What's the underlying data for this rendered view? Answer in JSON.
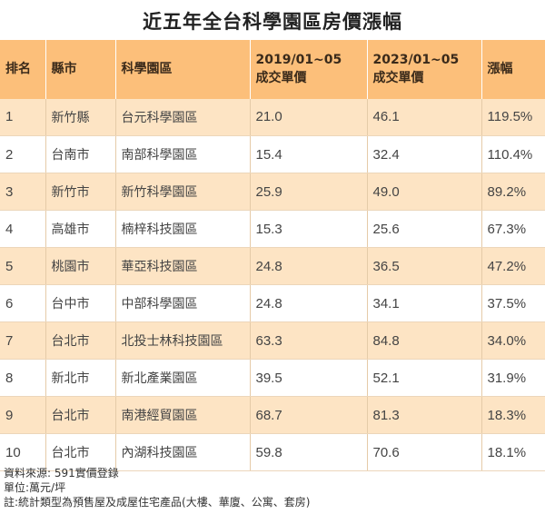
{
  "title": "近五年全台科學園區房價漲幅",
  "chart_data": {
    "type": "table",
    "title": "近五年全台科學園區房價漲幅",
    "columns": [
      "排名",
      "縣市",
      "科學園區",
      "2019/01~05 成交單價",
      "2023/01~05 成交單價",
      "漲幅"
    ],
    "header": {
      "rank": "排名",
      "city": "縣市",
      "park": "科學園區",
      "p2019_line1": "2019/01~05",
      "p2019_line2": "成交單價",
      "p2023_line1": "2023/01~05",
      "p2023_line2": "成交單價",
      "growth": "漲幅"
    },
    "rows": [
      {
        "rank": "1",
        "city": "新竹縣",
        "park": "台元科學園區",
        "p2019": "21.0",
        "p2023": "46.1",
        "growth": "119.5%"
      },
      {
        "rank": "2",
        "city": "台南市",
        "park": "南部科學園區",
        "p2019": "15.4",
        "p2023": "32.4",
        "growth": "110.4%"
      },
      {
        "rank": "3",
        "city": "新竹市",
        "park": "新竹科學園區",
        "p2019": "25.9",
        "p2023": "49.0",
        "growth": "89.2%"
      },
      {
        "rank": "4",
        "city": "高雄市",
        "park": "楠梓科技園區",
        "p2019": "15.3",
        "p2023": "25.6",
        "growth": "67.3%"
      },
      {
        "rank": "5",
        "city": "桃園市",
        "park": "華亞科技園區",
        "p2019": "24.8",
        "p2023": "36.5",
        "growth": "47.2%"
      },
      {
        "rank": "6",
        "city": "台中市",
        "park": "中部科學園區",
        "p2019": "24.8",
        "p2023": "34.1",
        "growth": "37.5%"
      },
      {
        "rank": "7",
        "city": "台北市",
        "park": "北投士林科技園區",
        "p2019": "63.3",
        "p2023": "84.8",
        "growth": "34.0%"
      },
      {
        "rank": "8",
        "city": "新北市",
        "park": "新北產業園區",
        "p2019": "39.5",
        "p2023": "52.1",
        "growth": "31.9%"
      },
      {
        "rank": "9",
        "city": "台北市",
        "park": "南港經貿園區",
        "p2019": "68.7",
        "p2023": "81.3",
        "growth": "18.3%"
      },
      {
        "rank": "10",
        "city": "台北市",
        "park": "內湖科技園區",
        "p2019": "59.8",
        "p2023": "70.6",
        "growth": "18.1%"
      }
    ]
  },
  "notes": {
    "source": "資料來源: 591實價登錄",
    "unit": "單位:萬元/坪",
    "remark": "註:統計類型為預售屋及成屋住宅產品(大樓、華廈、公寓、套房)"
  }
}
